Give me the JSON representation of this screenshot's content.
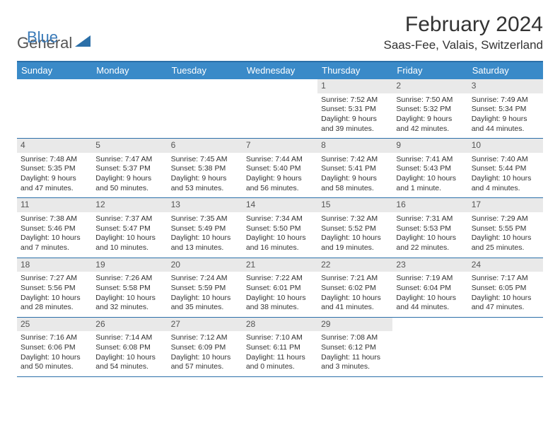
{
  "logo": {
    "part1": "General",
    "part2": "Blue"
  },
  "title": "February 2024",
  "location": "Saas-Fee, Valais, Switzerland",
  "colors": {
    "accent": "#3a8ac8",
    "rule": "#2b6fa8",
    "dayhdr_text": "#ffffff",
    "daynum_bg": "#e9e9e9",
    "body_text": "#333333"
  },
  "day_headers": [
    "Sunday",
    "Monday",
    "Tuesday",
    "Wednesday",
    "Thursday",
    "Friday",
    "Saturday"
  ],
  "weeks": [
    [
      {
        "n": "",
        "sunrise": "",
        "sunset": "",
        "daylight": ""
      },
      {
        "n": "",
        "sunrise": "",
        "sunset": "",
        "daylight": ""
      },
      {
        "n": "",
        "sunrise": "",
        "sunset": "",
        "daylight": ""
      },
      {
        "n": "",
        "sunrise": "",
        "sunset": "",
        "daylight": ""
      },
      {
        "n": "1",
        "sunrise": "Sunrise: 7:52 AM",
        "sunset": "Sunset: 5:31 PM",
        "daylight": "Daylight: 9 hours and 39 minutes."
      },
      {
        "n": "2",
        "sunrise": "Sunrise: 7:50 AM",
        "sunset": "Sunset: 5:32 PM",
        "daylight": "Daylight: 9 hours and 42 minutes."
      },
      {
        "n": "3",
        "sunrise": "Sunrise: 7:49 AM",
        "sunset": "Sunset: 5:34 PM",
        "daylight": "Daylight: 9 hours and 44 minutes."
      }
    ],
    [
      {
        "n": "4",
        "sunrise": "Sunrise: 7:48 AM",
        "sunset": "Sunset: 5:35 PM",
        "daylight": "Daylight: 9 hours and 47 minutes."
      },
      {
        "n": "5",
        "sunrise": "Sunrise: 7:47 AM",
        "sunset": "Sunset: 5:37 PM",
        "daylight": "Daylight: 9 hours and 50 minutes."
      },
      {
        "n": "6",
        "sunrise": "Sunrise: 7:45 AM",
        "sunset": "Sunset: 5:38 PM",
        "daylight": "Daylight: 9 hours and 53 minutes."
      },
      {
        "n": "7",
        "sunrise": "Sunrise: 7:44 AM",
        "sunset": "Sunset: 5:40 PM",
        "daylight": "Daylight: 9 hours and 56 minutes."
      },
      {
        "n": "8",
        "sunrise": "Sunrise: 7:42 AM",
        "sunset": "Sunset: 5:41 PM",
        "daylight": "Daylight: 9 hours and 58 minutes."
      },
      {
        "n": "9",
        "sunrise": "Sunrise: 7:41 AM",
        "sunset": "Sunset: 5:43 PM",
        "daylight": "Daylight: 10 hours and 1 minute."
      },
      {
        "n": "10",
        "sunrise": "Sunrise: 7:40 AM",
        "sunset": "Sunset: 5:44 PM",
        "daylight": "Daylight: 10 hours and 4 minutes."
      }
    ],
    [
      {
        "n": "11",
        "sunrise": "Sunrise: 7:38 AM",
        "sunset": "Sunset: 5:46 PM",
        "daylight": "Daylight: 10 hours and 7 minutes."
      },
      {
        "n": "12",
        "sunrise": "Sunrise: 7:37 AM",
        "sunset": "Sunset: 5:47 PM",
        "daylight": "Daylight: 10 hours and 10 minutes."
      },
      {
        "n": "13",
        "sunrise": "Sunrise: 7:35 AM",
        "sunset": "Sunset: 5:49 PM",
        "daylight": "Daylight: 10 hours and 13 minutes."
      },
      {
        "n": "14",
        "sunrise": "Sunrise: 7:34 AM",
        "sunset": "Sunset: 5:50 PM",
        "daylight": "Daylight: 10 hours and 16 minutes."
      },
      {
        "n": "15",
        "sunrise": "Sunrise: 7:32 AM",
        "sunset": "Sunset: 5:52 PM",
        "daylight": "Daylight: 10 hours and 19 minutes."
      },
      {
        "n": "16",
        "sunrise": "Sunrise: 7:31 AM",
        "sunset": "Sunset: 5:53 PM",
        "daylight": "Daylight: 10 hours and 22 minutes."
      },
      {
        "n": "17",
        "sunrise": "Sunrise: 7:29 AM",
        "sunset": "Sunset: 5:55 PM",
        "daylight": "Daylight: 10 hours and 25 minutes."
      }
    ],
    [
      {
        "n": "18",
        "sunrise": "Sunrise: 7:27 AM",
        "sunset": "Sunset: 5:56 PM",
        "daylight": "Daylight: 10 hours and 28 minutes."
      },
      {
        "n": "19",
        "sunrise": "Sunrise: 7:26 AM",
        "sunset": "Sunset: 5:58 PM",
        "daylight": "Daylight: 10 hours and 32 minutes."
      },
      {
        "n": "20",
        "sunrise": "Sunrise: 7:24 AM",
        "sunset": "Sunset: 5:59 PM",
        "daylight": "Daylight: 10 hours and 35 minutes."
      },
      {
        "n": "21",
        "sunrise": "Sunrise: 7:22 AM",
        "sunset": "Sunset: 6:01 PM",
        "daylight": "Daylight: 10 hours and 38 minutes."
      },
      {
        "n": "22",
        "sunrise": "Sunrise: 7:21 AM",
        "sunset": "Sunset: 6:02 PM",
        "daylight": "Daylight: 10 hours and 41 minutes."
      },
      {
        "n": "23",
        "sunrise": "Sunrise: 7:19 AM",
        "sunset": "Sunset: 6:04 PM",
        "daylight": "Daylight: 10 hours and 44 minutes."
      },
      {
        "n": "24",
        "sunrise": "Sunrise: 7:17 AM",
        "sunset": "Sunset: 6:05 PM",
        "daylight": "Daylight: 10 hours and 47 minutes."
      }
    ],
    [
      {
        "n": "25",
        "sunrise": "Sunrise: 7:16 AM",
        "sunset": "Sunset: 6:06 PM",
        "daylight": "Daylight: 10 hours and 50 minutes."
      },
      {
        "n": "26",
        "sunrise": "Sunrise: 7:14 AM",
        "sunset": "Sunset: 6:08 PM",
        "daylight": "Daylight: 10 hours and 54 minutes."
      },
      {
        "n": "27",
        "sunrise": "Sunrise: 7:12 AM",
        "sunset": "Sunset: 6:09 PM",
        "daylight": "Daylight: 10 hours and 57 minutes."
      },
      {
        "n": "28",
        "sunrise": "Sunrise: 7:10 AM",
        "sunset": "Sunset: 6:11 PM",
        "daylight": "Daylight: 11 hours and 0 minutes."
      },
      {
        "n": "29",
        "sunrise": "Sunrise: 7:08 AM",
        "sunset": "Sunset: 6:12 PM",
        "daylight": "Daylight: 11 hours and 3 minutes."
      },
      {
        "n": "",
        "sunrise": "",
        "sunset": "",
        "daylight": ""
      },
      {
        "n": "",
        "sunrise": "",
        "sunset": "",
        "daylight": ""
      }
    ]
  ]
}
